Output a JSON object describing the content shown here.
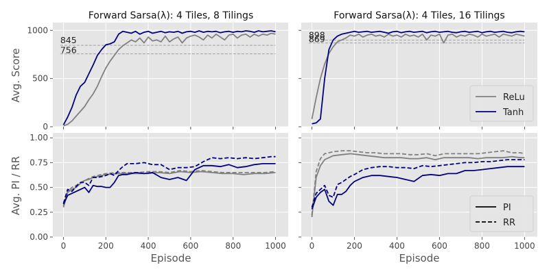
{
  "figure": {
    "xlabel": "Episode",
    "ylabel_top": "Avg. Score",
    "ylabel_bottom": "Avg. PI / RR"
  },
  "colors": {
    "relu": "#808080",
    "tanh": "#000080",
    "panel_bg": "#e5e5e5",
    "grid": "#ffffff",
    "ref_line": "#a0a0a0"
  },
  "chart_data": [
    {
      "type": "line",
      "title": "Forward Sarsa(λ): 4 Tiles, 8 Tilings",
      "xlabel": "",
      "ylabel": "Avg. Score",
      "xlim": [
        -50,
        1060
      ],
      "ylim": [
        0,
        1080
      ],
      "xticks": [
        0,
        200,
        400,
        600,
        800,
        1000
      ],
      "yticks": [
        0,
        500,
        1000
      ],
      "grid": true,
      "reference_lines": [
        {
          "y": 845,
          "label": "845"
        },
        {
          "y": 756,
          "label": "756"
        }
      ],
      "series": [
        {
          "name": "ReLu",
          "style": "solid",
          "x": [
            0,
            20,
            40,
            60,
            80,
            100,
            120,
            140,
            160,
            180,
            200,
            220,
            240,
            260,
            280,
            300,
            320,
            340,
            360,
            380,
            400,
            420,
            440,
            460,
            480,
            500,
            520,
            540,
            560,
            580,
            600,
            620,
            640,
            660,
            680,
            700,
            720,
            740,
            760,
            780,
            800,
            820,
            840,
            860,
            880,
            900,
            920,
            940,
            960,
            980,
            1000
          ],
          "y": [
            10,
            25,
            60,
            110,
            160,
            210,
            280,
            340,
            420,
            520,
            610,
            680,
            740,
            800,
            840,
            870,
            900,
            880,
            920,
            870,
            930,
            890,
            900,
            880,
            940,
            880,
            910,
            930,
            870,
            920,
            940,
            950,
            930,
            900,
            950,
            920,
            960,
            930,
            900,
            950,
            960,
            920,
            950,
            960,
            930,
            960,
            940,
            960,
            950,
            970,
            960
          ]
        },
        {
          "name": "Tanh",
          "style": "solid",
          "x": [
            0,
            20,
            40,
            60,
            80,
            100,
            120,
            140,
            160,
            180,
            200,
            220,
            240,
            260,
            280,
            300,
            320,
            340,
            360,
            380,
            400,
            420,
            440,
            460,
            480,
            500,
            520,
            540,
            560,
            580,
            600,
            620,
            640,
            660,
            680,
            700,
            720,
            740,
            760,
            780,
            800,
            820,
            840,
            860,
            880,
            900,
            920,
            940,
            960,
            980,
            1000
          ],
          "y": [
            20,
            100,
            200,
            330,
            420,
            460,
            550,
            640,
            740,
            800,
            850,
            860,
            880,
            960,
            990,
            980,
            970,
            990,
            960,
            980,
            990,
            970,
            980,
            990,
            975,
            985,
            980,
            990,
            970,
            985,
            990,
            980,
            995,
            980,
            990,
            985,
            990,
            975,
            985,
            990,
            980,
            990,
            985,
            995,
            990,
            980,
            995,
            985,
            990,
            995,
            985
          ]
        }
      ]
    },
    {
      "type": "line",
      "title": "Forward Sarsa(λ): 4 Tiles, 16 Tilings",
      "xlabel": "",
      "ylabel": "",
      "xlim": [
        -50,
        1060
      ],
      "ylim": [
        0,
        1080
      ],
      "xticks": [
        0,
        200,
        400,
        600,
        800,
        1000
      ],
      "yticks": [
        0,
        500,
        1000
      ],
      "grid": true,
      "reference_lines": [
        {
          "y": 898,
          "label": "898"
        },
        {
          "y": 869,
          "label": "869"
        }
      ],
      "legend": {
        "position": "lower-right",
        "entries": [
          "ReLu",
          "Tanh"
        ]
      },
      "series": [
        {
          "name": "ReLu",
          "style": "solid",
          "x": [
            0,
            20,
            40,
            60,
            80,
            100,
            120,
            140,
            160,
            180,
            200,
            220,
            240,
            260,
            280,
            300,
            320,
            340,
            360,
            380,
            400,
            420,
            440,
            460,
            480,
            500,
            520,
            540,
            560,
            580,
            600,
            620,
            640,
            660,
            680,
            700,
            720,
            740,
            760,
            780,
            800,
            820,
            840,
            860,
            880,
            900,
            920,
            940,
            960,
            980,
            1000
          ],
          "y": [
            80,
            300,
            500,
            650,
            760,
            830,
            880,
            900,
            920,
            950,
            940,
            960,
            930,
            950,
            960,
            940,
            950,
            930,
            960,
            940,
            950,
            930,
            960,
            940,
            950,
            930,
            960,
            900,
            950,
            940,
            960,
            870,
            950,
            960,
            930,
            950,
            940,
            960,
            950,
            930,
            960,
            940,
            950,
            960,
            930,
            960,
            950,
            940,
            960,
            950,
            940
          ]
        },
        {
          "name": "Tanh",
          "style": "solid",
          "x": [
            0,
            20,
            40,
            60,
            80,
            100,
            120,
            140,
            160,
            180,
            200,
            220,
            240,
            260,
            280,
            300,
            320,
            340,
            360,
            380,
            400,
            420,
            440,
            460,
            480,
            500,
            520,
            540,
            560,
            580,
            600,
            620,
            640,
            660,
            680,
            700,
            720,
            740,
            760,
            780,
            800,
            820,
            840,
            860,
            880,
            900,
            920,
            940,
            960,
            980,
            1000
          ],
          "y": [
            30,
            40,
            80,
            500,
            800,
            900,
            940,
            960,
            970,
            980,
            990,
            980,
            985,
            990,
            980,
            985,
            990,
            980,
            970,
            985,
            990,
            975,
            985,
            990,
            980,
            985,
            990,
            975,
            985,
            990,
            980,
            985,
            990,
            980,
            975,
            985,
            990,
            980,
            985,
            990,
            975,
            985,
            990,
            980,
            985,
            990,
            980,
            975,
            985,
            990,
            985
          ]
        }
      ]
    },
    {
      "type": "line",
      "title": "",
      "xlabel": "Episode",
      "ylabel": "Avg. PI / RR",
      "xlim": [
        -50,
        1060
      ],
      "ylim": [
        0,
        1.05
      ],
      "xticks": [
        0,
        200,
        400,
        600,
        800,
        1000
      ],
      "yticks": [
        0.0,
        0.25,
        0.5,
        0.75,
        1.0
      ],
      "ytick_labels": [
        "0.00",
        "0.25",
        "0.50",
        "0.75",
        "1.00"
      ],
      "grid": true,
      "series": [
        {
          "name": "ReLu PI",
          "style": "solid",
          "x": [
            0,
            20,
            40,
            60,
            80,
            100,
            120,
            140,
            160,
            180,
            200,
            250,
            300,
            350,
            400,
            450,
            500,
            550,
            600,
            650,
            700,
            750,
            800,
            850,
            900,
            950,
            1000
          ],
          "y": [
            0.3,
            0.45,
            0.48,
            0.5,
            0.54,
            0.57,
            0.58,
            0.6,
            0.61,
            0.62,
            0.63,
            0.64,
            0.64,
            0.64,
            0.64,
            0.65,
            0.64,
            0.66,
            0.65,
            0.66,
            0.65,
            0.64,
            0.64,
            0.63,
            0.64,
            0.64,
            0.65
          ]
        },
        {
          "name": "ReLu RR",
          "style": "dashed",
          "x": [
            0,
            20,
            40,
            60,
            80,
            100,
            120,
            140,
            160,
            180,
            200,
            250,
            300,
            350,
            400,
            450,
            500,
            550,
            600,
            650,
            700,
            750,
            800,
            850,
            900,
            950,
            1000
          ],
          "y": [
            0.31,
            0.46,
            0.5,
            0.52,
            0.55,
            0.57,
            0.59,
            0.61,
            0.62,
            0.63,
            0.64,
            0.65,
            0.65,
            0.65,
            0.66,
            0.66,
            0.65,
            0.67,
            0.66,
            0.67,
            0.66,
            0.65,
            0.65,
            0.65,
            0.65,
            0.65,
            0.66
          ]
        },
        {
          "name": "Tanh PI",
          "style": "solid",
          "x": [
            0,
            20,
            40,
            60,
            80,
            100,
            120,
            140,
            160,
            180,
            200,
            220,
            240,
            260,
            280,
            300,
            340,
            380,
            420,
            460,
            500,
            540,
            580,
            620,
            660,
            700,
            740,
            780,
            820,
            860,
            900,
            940,
            980,
            1000
          ],
          "y": [
            0.33,
            0.42,
            0.44,
            0.46,
            0.48,
            0.5,
            0.45,
            0.52,
            0.51,
            0.51,
            0.5,
            0.5,
            0.55,
            0.62,
            0.63,
            0.63,
            0.65,
            0.64,
            0.65,
            0.6,
            0.58,
            0.6,
            0.57,
            0.68,
            0.72,
            0.72,
            0.71,
            0.73,
            0.7,
            0.71,
            0.73,
            0.74,
            0.74,
            0.74
          ]
        },
        {
          "name": "Tanh RR",
          "style": "dashed",
          "x": [
            0,
            20,
            40,
            60,
            80,
            100,
            120,
            140,
            160,
            180,
            200,
            220,
            240,
            260,
            280,
            300,
            340,
            380,
            420,
            460,
            500,
            540,
            580,
            620,
            660,
            700,
            740,
            780,
            820,
            860,
            900,
            940,
            980,
            1000
          ],
          "y": [
            0.34,
            0.48,
            0.46,
            0.51,
            0.55,
            0.55,
            0.52,
            0.6,
            0.6,
            0.61,
            0.62,
            0.64,
            0.62,
            0.67,
            0.71,
            0.74,
            0.74,
            0.75,
            0.73,
            0.73,
            0.68,
            0.7,
            0.7,
            0.71,
            0.76,
            0.8,
            0.79,
            0.8,
            0.79,
            0.8,
            0.79,
            0.8,
            0.81,
            0.81
          ]
        }
      ]
    },
    {
      "type": "line",
      "title": "",
      "xlabel": "Episode",
      "ylabel": "",
      "xlim": [
        -50,
        1060
      ],
      "ylim": [
        0,
        1.05
      ],
      "xticks": [
        0,
        200,
        400,
        600,
        800,
        1000
      ],
      "yticks": [
        0.0,
        0.25,
        0.5,
        0.75,
        1.0
      ],
      "grid": true,
      "legend": {
        "position": "lower-right",
        "entries": [
          "PI",
          "RR"
        ]
      },
      "series": [
        {
          "name": "ReLu PI",
          "style": "solid",
          "x": [
            0,
            20,
            40,
            60,
            80,
            100,
            140,
            180,
            220,
            260,
            300,
            340,
            380,
            420,
            460,
            500,
            540,
            580,
            620,
            660,
            700,
            740,
            780,
            820,
            860,
            900,
            940,
            980,
            1000
          ],
          "y": [
            0.2,
            0.6,
            0.72,
            0.78,
            0.8,
            0.82,
            0.83,
            0.84,
            0.83,
            0.82,
            0.81,
            0.8,
            0.8,
            0.8,
            0.79,
            0.79,
            0.8,
            0.78,
            0.8,
            0.8,
            0.8,
            0.8,
            0.79,
            0.8,
            0.8,
            0.8,
            0.81,
            0.8,
            0.8
          ]
        },
        {
          "name": "ReLu RR",
          "style": "dashed",
          "x": [
            0,
            20,
            40,
            60,
            80,
            100,
            140,
            180,
            220,
            260,
            300,
            340,
            380,
            420,
            460,
            500,
            540,
            580,
            620,
            660,
            700,
            740,
            780,
            820,
            860,
            900,
            940,
            980,
            1000
          ],
          "y": [
            0.22,
            0.66,
            0.79,
            0.84,
            0.85,
            0.86,
            0.87,
            0.87,
            0.86,
            0.85,
            0.85,
            0.84,
            0.84,
            0.84,
            0.83,
            0.83,
            0.84,
            0.82,
            0.84,
            0.84,
            0.84,
            0.84,
            0.84,
            0.85,
            0.86,
            0.87,
            0.85,
            0.85,
            0.84
          ]
        },
        {
          "name": "Tanh PI",
          "style": "solid",
          "x": [
            0,
            20,
            40,
            60,
            80,
            100,
            120,
            140,
            160,
            180,
            200,
            240,
            280,
            320,
            360,
            400,
            440,
            480,
            520,
            560,
            600,
            640,
            680,
            720,
            760,
            800,
            840,
            880,
            920,
            960,
            1000
          ],
          "y": [
            0.28,
            0.4,
            0.45,
            0.48,
            0.36,
            0.32,
            0.43,
            0.43,
            0.46,
            0.52,
            0.56,
            0.6,
            0.62,
            0.62,
            0.61,
            0.6,
            0.58,
            0.56,
            0.62,
            0.63,
            0.62,
            0.64,
            0.64,
            0.67,
            0.67,
            0.68,
            0.69,
            0.7,
            0.71,
            0.71,
            0.71
          ]
        },
        {
          "name": "Tanh RR",
          "style": "dashed",
          "x": [
            0,
            20,
            40,
            60,
            80,
            100,
            120,
            140,
            160,
            180,
            200,
            240,
            280,
            320,
            360,
            400,
            440,
            480,
            520,
            560,
            600,
            640,
            680,
            720,
            760,
            800,
            840,
            880,
            920,
            960,
            1000
          ],
          "y": [
            0.3,
            0.44,
            0.48,
            0.52,
            0.42,
            0.4,
            0.53,
            0.55,
            0.58,
            0.61,
            0.63,
            0.68,
            0.7,
            0.71,
            0.71,
            0.7,
            0.7,
            0.69,
            0.72,
            0.71,
            0.72,
            0.73,
            0.74,
            0.75,
            0.75,
            0.76,
            0.76,
            0.77,
            0.78,
            0.78,
            0.78
          ]
        }
      ]
    }
  ]
}
